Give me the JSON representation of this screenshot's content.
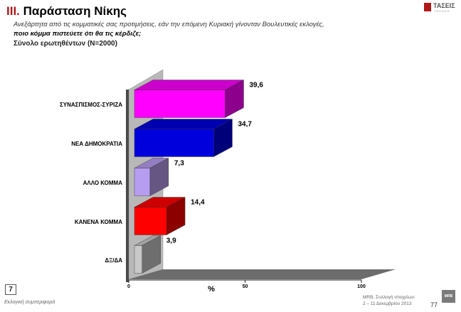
{
  "header": {
    "section_number": "III.",
    "title": "Παράσταση Νίκης",
    "subtitle_line1": "Ανεξάρτητα από τις κομματικές σας προτιμήσεις, εάν την επόμενη Κυριακή γίνονταν Βουλευτικές εκλογές,",
    "subtitle_line2": "ποιο κόμμα πιστεύετε ότι θα τις κέρδιζε;",
    "base": "Σύνολο ερωτηθέντων (Ν=2000)",
    "logo_text": "ΤΑΣΕΙΣ",
    "logo_small": "TRENDS"
  },
  "chart_data": {
    "type": "bar",
    "orientation": "horizontal",
    "categories": [
      "ΣΥΝΑΣΠΙΣΜΟΣ-ΣΥΡΙΖΑ",
      "ΝΕΑ ΔΗΜΟΚΡΑΤΙΑ",
      "ΑΛΛΟ ΚΟΜΜΑ",
      "ΚΑΝΕΝΑ ΚΟΜΜΑ",
      "ΔΞ/ΔΑ"
    ],
    "values": [
      39.6,
      34.7,
      7.3,
      14.4,
      3.9
    ],
    "value_labels": [
      "39,6",
      "34,7",
      "7,3",
      "14,4",
      "3,9"
    ],
    "colors": [
      "#ff00ff",
      "#0000dd",
      "#b79df0",
      "#ff0000",
      "#c8c8c8"
    ],
    "xlabel": "%",
    "xlim": [
      0,
      100
    ],
    "xticks": [
      0,
      50,
      100
    ],
    "grid": false,
    "style": "3d"
  },
  "footer": {
    "page_box": "7",
    "left_text": "Εκλογική συμπεριφορά",
    "right_line1": "MRB, Συλλογή στοιχείων:",
    "right_line2": "2 – 11 Δεκεμβρίου 2013",
    "page_number": "77",
    "mrb_logo": "MRB"
  }
}
